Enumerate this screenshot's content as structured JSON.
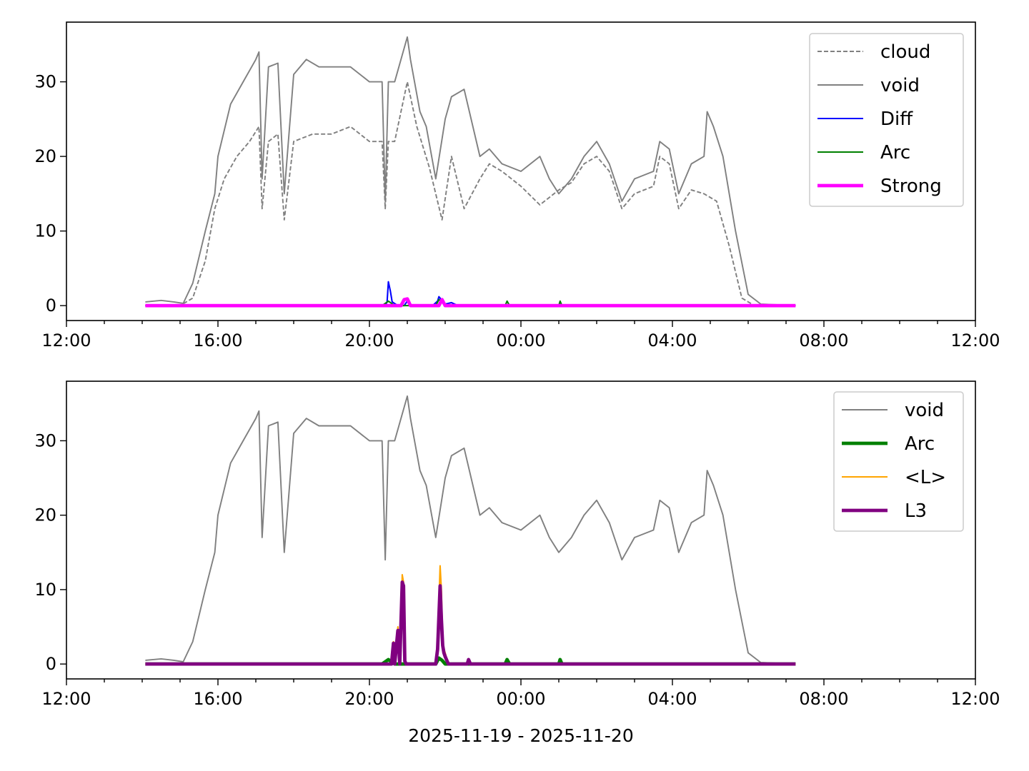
{
  "chart_data": [
    {
      "type": "line",
      "title": "",
      "xlabel": "",
      "ylabel": "",
      "xlim": [
        "2025-11-19 12:00",
        "2025-11-20 12:00"
      ],
      "ylim": [
        -2,
        38
      ],
      "x_tick_labels": [
        "12:00",
        "16:00",
        "20:00",
        "00:00",
        "04:00",
        "08:00",
        "12:00"
      ],
      "y_tick_labels": [
        "0",
        "10",
        "20",
        "30"
      ],
      "y_ticks": [
        0,
        10,
        20,
        30
      ],
      "grid": false,
      "legend_position": "upper right",
      "series": [
        {
          "name": "cloud",
          "color": "#808080",
          "style": "dashed",
          "width": 1.2,
          "x": [
            "14:05",
            "14:30",
            "15:00",
            "15:20",
            "15:40",
            "15:55",
            "16:10",
            "16:30",
            "16:50",
            "17:05",
            "17:10",
            "17:20",
            "17:35",
            "17:45",
            "18:00",
            "18:30",
            "19:00",
            "19:30",
            "20:00",
            "20:20",
            "20:25",
            "20:30",
            "20:40",
            "21:00",
            "21:15",
            "21:35",
            "21:55",
            "22:10",
            "22:30",
            "22:55",
            "23:10",
            "23:30",
            "00:00",
            "00:30",
            "01:00",
            "01:20",
            "01:40",
            "02:00",
            "02:20",
            "02:40",
            "03:00",
            "03:30",
            "03:40",
            "03:55",
            "04:10",
            "04:30",
            "04:50",
            "05:10",
            "05:30",
            "05:50",
            "06:10",
            "07:15"
          ],
          "values": [
            0.0,
            0.0,
            0.0,
            1.0,
            6.0,
            13.0,
            17.0,
            20.0,
            22.0,
            24.0,
            13.0,
            22.0,
            23.0,
            11.5,
            22.0,
            23.0,
            23.0,
            24.0,
            22.0,
            22.0,
            13.0,
            22.0,
            22.0,
            30.0,
            24.0,
            18.5,
            11.5,
            20.0,
            13.0,
            17.0,
            19.0,
            18.0,
            16.0,
            13.5,
            15.5,
            16.5,
            19.0,
            20.0,
            18.0,
            13.0,
            15.0,
            16.0,
            20.0,
            19.0,
            13.0,
            15.5,
            15.0,
            14.0,
            8.0,
            1.0,
            0.0,
            0.0
          ]
        },
        {
          "name": "void",
          "color": "#808080",
          "style": "solid",
          "width": 1.2,
          "x": [
            "14:05",
            "14:30",
            "14:50",
            "15:05",
            "15:20",
            "15:40",
            "15:55",
            "16:00",
            "16:20",
            "16:40",
            "17:00",
            "17:05",
            "17:10",
            "17:20",
            "17:35",
            "17:45",
            "18:00",
            "18:20",
            "18:40",
            "19:00",
            "19:30",
            "20:00",
            "20:20",
            "20:25",
            "20:30",
            "20:40",
            "21:00",
            "21:05",
            "21:20",
            "21:30",
            "21:45",
            "22:00",
            "22:10",
            "22:30",
            "22:55",
            "23:10",
            "23:30",
            "00:00",
            "00:30",
            "00:45",
            "01:00",
            "01:20",
            "01:40",
            "02:00",
            "02:20",
            "02:40",
            "03:00",
            "03:30",
            "03:40",
            "03:55",
            "04:10",
            "04:30",
            "04:50",
            "04:55",
            "05:05",
            "05:20",
            "05:40",
            "06:00",
            "06:20",
            "07:15"
          ],
          "values": [
            0.5,
            0.7,
            0.5,
            0.3,
            3.0,
            10.0,
            15.0,
            20.0,
            27.0,
            30.0,
            33.0,
            34.0,
            17.0,
            32.0,
            32.5,
            15.0,
            31.0,
            33.0,
            32.0,
            32.0,
            32.0,
            30.0,
            30.0,
            14.0,
            30.0,
            30.0,
            36.0,
            33.0,
            26.0,
            24.0,
            17.0,
            25.0,
            28.0,
            29.0,
            20.0,
            21.0,
            19.0,
            18.0,
            20.0,
            17.0,
            15.0,
            17.0,
            20.0,
            22.0,
            19.0,
            14.0,
            17.0,
            18.0,
            22.0,
            21.0,
            15.0,
            19.0,
            20.0,
            26.0,
            24.0,
            20.0,
            10.0,
            1.5,
            0.2,
            0.0
          ]
        },
        {
          "name": "Diff",
          "color": "#0000ff",
          "style": "solid",
          "width": 1.3,
          "x": [
            "14:05",
            "20:25",
            "20:28",
            "20:30",
            "20:33",
            "20:36",
            "20:45",
            "20:55",
            "21:00",
            "21:05",
            "21:30",
            "21:40",
            "21:48",
            "21:50",
            "21:52",
            "21:55",
            "22:00",
            "22:10",
            "22:20",
            "07:15"
          ],
          "values": [
            0.0,
            0.0,
            0.5,
            3.2,
            2.0,
            0.5,
            0.0,
            0.0,
            0.6,
            0.0,
            0.0,
            0.0,
            0.6,
            1.2,
            1.0,
            0.5,
            0.2,
            0.4,
            0.0,
            0.0
          ]
        },
        {
          "name": "Arc",
          "color": "#008000",
          "style": "solid",
          "width": 1.3,
          "x": [
            "14:05",
            "20:20",
            "20:30",
            "20:40",
            "21:45",
            "21:50",
            "21:55",
            "22:00",
            "23:35",
            "23:38",
            "23:42",
            "01:00",
            "01:02",
            "01:05",
            "07:15"
          ],
          "values": [
            0.0,
            0.0,
            0.6,
            0.0,
            0.0,
            0.8,
            0.5,
            0.0,
            0.0,
            0.6,
            0.0,
            0.0,
            0.6,
            0.0,
            0.0
          ]
        },
        {
          "name": "Strong",
          "color": "#ff00ff",
          "style": "solid",
          "width": 3.0,
          "x": [
            "14:05",
            "20:50",
            "20:55",
            "21:00",
            "21:05",
            "21:50",
            "21:55",
            "22:00",
            "07:15"
          ],
          "values": [
            0.0,
            0.0,
            0.8,
            0.9,
            0.0,
            0.0,
            0.8,
            0.0,
            0.0
          ]
        }
      ]
    },
    {
      "type": "line",
      "title": "",
      "xlabel": "2025-11-19 - 2025-11-20",
      "ylabel": "",
      "xlim": [
        "2025-11-19 12:00",
        "2025-11-20 12:00"
      ],
      "ylim": [
        -2,
        38
      ],
      "x_tick_labels": [
        "12:00",
        "16:00",
        "20:00",
        "00:00",
        "04:00",
        "08:00",
        "12:00"
      ],
      "y_tick_labels": [
        "0",
        "10",
        "20",
        "30"
      ],
      "y_ticks": [
        0,
        10,
        20,
        30
      ],
      "grid": false,
      "legend_position": "upper right",
      "series": [
        {
          "name": "void",
          "color": "#808080",
          "style": "solid",
          "width": 1.2,
          "x": [
            "14:05",
            "14:30",
            "14:50",
            "15:05",
            "15:20",
            "15:40",
            "15:55",
            "16:00",
            "16:20",
            "16:40",
            "17:00",
            "17:05",
            "17:10",
            "17:20",
            "17:35",
            "17:45",
            "18:00",
            "18:20",
            "18:40",
            "19:00",
            "19:30",
            "20:00",
            "20:20",
            "20:25",
            "20:30",
            "20:40",
            "21:00",
            "21:05",
            "21:20",
            "21:30",
            "21:45",
            "22:00",
            "22:10",
            "22:30",
            "22:55",
            "23:10",
            "23:30",
            "00:00",
            "00:30",
            "00:45",
            "01:00",
            "01:20",
            "01:40",
            "02:00",
            "02:20",
            "02:40",
            "03:00",
            "03:30",
            "03:40",
            "03:55",
            "04:10",
            "04:30",
            "04:50",
            "04:55",
            "05:05",
            "05:20",
            "05:40",
            "06:00",
            "06:20",
            "07:15"
          ],
          "values": [
            0.5,
            0.7,
            0.5,
            0.3,
            3.0,
            10.0,
            15.0,
            20.0,
            27.0,
            30.0,
            33.0,
            34.0,
            17.0,
            32.0,
            32.5,
            15.0,
            31.0,
            33.0,
            32.0,
            32.0,
            32.0,
            30.0,
            30.0,
            14.0,
            30.0,
            30.0,
            36.0,
            33.0,
            26.0,
            24.0,
            17.0,
            25.0,
            28.0,
            29.0,
            20.0,
            21.0,
            19.0,
            18.0,
            20.0,
            17.0,
            15.0,
            17.0,
            20.0,
            22.0,
            19.0,
            14.0,
            17.0,
            18.0,
            22.0,
            21.0,
            15.0,
            19.0,
            20.0,
            26.0,
            24.0,
            20.0,
            10.0,
            1.5,
            0.2,
            0.0
          ]
        },
        {
          "name": "Arc",
          "color": "#008000",
          "style": "solid",
          "width": 3.0,
          "x": [
            "14:05",
            "20:20",
            "20:30",
            "20:40",
            "21:45",
            "21:50",
            "21:55",
            "22:00",
            "23:35",
            "23:38",
            "23:42",
            "01:00",
            "01:02",
            "01:05",
            "07:15"
          ],
          "values": [
            0.0,
            0.0,
            0.6,
            0.0,
            0.0,
            0.8,
            0.5,
            0.0,
            0.0,
            0.6,
            0.0,
            0.0,
            0.6,
            0.0,
            0.0
          ]
        },
        {
          "name": "<L>",
          "color": "#ffa500",
          "style": "solid",
          "width": 1.3,
          "x": [
            "14:05",
            "20:35",
            "20:38",
            "20:40",
            "20:45",
            "20:48",
            "20:52",
            "20:54",
            "20:56",
            "20:58",
            "21:00",
            "21:05",
            "21:45",
            "21:48",
            "21:52",
            "21:54",
            "21:56",
            "21:58",
            "22:00",
            "22:05",
            "22:35",
            "22:37",
            "22:40",
            "07:15"
          ],
          "values": [
            0.0,
            0.0,
            3.0,
            0.0,
            5.0,
            0.0,
            12.0,
            11.0,
            0.5,
            0.0,
            0.0,
            0.0,
            0.0,
            3.0,
            13.2,
            10.0,
            3.0,
            2.0,
            1.5,
            0.0,
            0.0,
            0.7,
            0.0,
            0.0
          ]
        },
        {
          "name": "L3",
          "color": "#800080",
          "style": "solid",
          "width": 3.0,
          "x": [
            "14:05",
            "20:35",
            "20:38",
            "20:40",
            "20:45",
            "20:48",
            "20:52",
            "20:54",
            "20:56",
            "20:58",
            "21:00",
            "21:05",
            "21:45",
            "21:48",
            "21:52",
            "21:54",
            "21:56",
            "21:58",
            "22:00",
            "22:05",
            "22:35",
            "22:37",
            "22:40",
            "07:15"
          ],
          "values": [
            0.0,
            0.0,
            2.8,
            0.0,
            4.5,
            0.0,
            11.0,
            10.5,
            0.4,
            0.0,
            0.0,
            0.0,
            0.0,
            2.0,
            10.5,
            6.0,
            2.5,
            1.5,
            1.0,
            0.0,
            0.0,
            0.6,
            0.0,
            0.0
          ]
        }
      ]
    }
  ]
}
